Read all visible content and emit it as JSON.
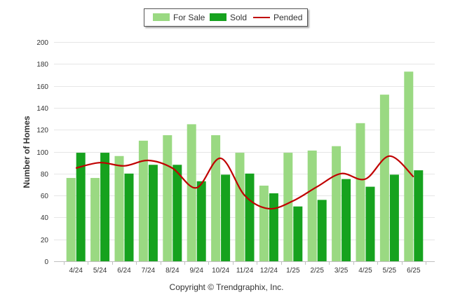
{
  "colors": {
    "for_sale": "#9ad982",
    "sold": "#16a21e",
    "pended": "#c00000",
    "grid": "#e6e6e6",
    "axis": "#c0c0c0"
  },
  "chart_data": {
    "type": "bar",
    "categories": [
      "4/24",
      "5/24",
      "6/24",
      "7/24",
      "8/24",
      "9/24",
      "10/24",
      "11/24",
      "12/24",
      "1/25",
      "2/25",
      "3/25",
      "4/25",
      "5/25",
      "6/25"
    ],
    "series": [
      {
        "name": "For Sale",
        "type": "bar",
        "values": [
          76,
          76,
          96,
          110,
          115,
          125,
          115,
          99,
          69,
          99,
          101,
          105,
          126,
          152,
          173
        ]
      },
      {
        "name": "Sold",
        "type": "bar",
        "values": [
          99,
          99,
          80,
          88,
          88,
          73,
          79,
          80,
          62,
          50,
          56,
          75,
          68,
          79,
          83
        ]
      },
      {
        "name": "Pended",
        "type": "line",
        "values": [
          85,
          90,
          87,
          92,
          85,
          67,
          94,
          60,
          48,
          55,
          68,
          80,
          75,
          96,
          77
        ]
      }
    ],
    "ylabel": "Number of Homes",
    "xlabel": "",
    "ylim": [
      0,
      200
    ],
    "yticks": [
      0,
      20,
      40,
      60,
      80,
      100,
      120,
      140,
      160,
      180,
      200
    ],
    "grid": true,
    "legend_position": "top-center"
  },
  "legend": {
    "for_sale": "For Sale",
    "sold": "Sold",
    "pended": "Pended"
  },
  "footer": {
    "copyright": "Copyright © Trendgraphix, Inc."
  }
}
